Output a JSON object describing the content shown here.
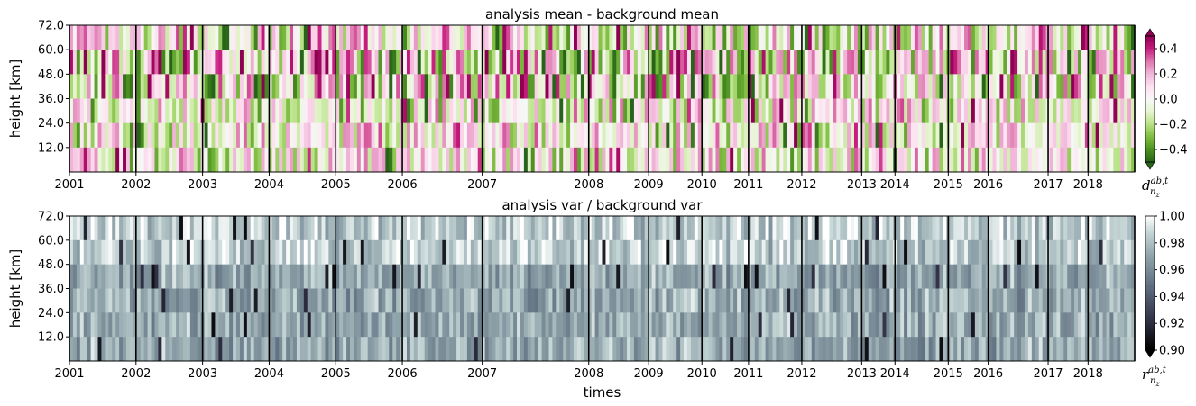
{
  "chart_data": [
    {
      "type": "heatmap",
      "title": "analysis mean - background mean",
      "ylabel": "height [km]",
      "xlabel": "",
      "yticks": [
        "72.0",
        "60.0",
        "48.0",
        "36.0",
        "24.0",
        "12.0"
      ],
      "ylim": [
        0,
        72
      ],
      "x_ticks": [
        "2001",
        "2002",
        "2003",
        "2004",
        "2005",
        "2006",
        "2007",
        "2008",
        "2009",
        "2010",
        "2011",
        "2012",
        "2013",
        "2014",
        "2015",
        "2016",
        "2017",
        "2018"
      ],
      "x_tick_positions": [
        2001.0,
        2002.0,
        2003.0,
        2004.0,
        2005.0,
        2006.0,
        2007.2,
        2008.8,
        2009.7,
        2010.5,
        2011.2,
        2012.0,
        2012.9,
        2013.4,
        2014.2,
        2014.8,
        2015.7,
        2016.3
      ],
      "year_boundaries": [
        2001.0,
        2002.0,
        2003.0,
        2004.0,
        2005.0,
        2006.0,
        2007.2,
        2008.8,
        2009.7,
        2010.5,
        2011.2,
        2012.0,
        2012.9,
        2013.4,
        2014.2,
        2014.8,
        2015.7,
        2016.3,
        2017.0
      ],
      "x_range": [
        2001.0,
        2017.0
      ],
      "height_levels": 6,
      "colormap": "PiYG_r",
      "colors": {
        "low": "#276419",
        "mid": "#f7f7f7",
        "high": "#8e0152"
      },
      "colorbar": {
        "ticks": [
          "0.4",
          "0.2",
          "0.0",
          "−0.2",
          "−0.4"
        ],
        "range": [
          -0.5,
          0.5
        ],
        "extend": "both"
      },
      "colorbar_symbol": {
        "base": "d",
        "sup": "ab,t",
        "sub": "n",
        "subsub": "z"
      }
    },
    {
      "type": "heatmap",
      "title": "analysis var / background var",
      "ylabel": "height [km]",
      "xlabel": "times",
      "yticks": [
        "72.0",
        "60.0",
        "48.0",
        "36.0",
        "24.0",
        "12.0"
      ],
      "ylim": [
        0,
        72
      ],
      "x_ticks": [
        "2001",
        "2002",
        "2003",
        "2004",
        "2005",
        "2006",
        "2007",
        "2008",
        "2009",
        "2010",
        "2011",
        "2012",
        "2013",
        "2014",
        "2015",
        "2016",
        "2017",
        "2018"
      ],
      "x_tick_positions": [
        2001.0,
        2002.0,
        2003.0,
        2004.0,
        2005.0,
        2006.0,
        2007.2,
        2008.8,
        2009.7,
        2010.5,
        2011.2,
        2012.0,
        2012.9,
        2013.4,
        2014.2,
        2014.8,
        2015.7,
        2016.3
      ],
      "year_boundaries": [
        2001.0,
        2002.0,
        2003.0,
        2004.0,
        2005.0,
        2006.0,
        2007.2,
        2008.8,
        2009.7,
        2010.5,
        2011.2,
        2012.0,
        2012.9,
        2013.4,
        2014.2,
        2014.8,
        2015.7,
        2016.3,
        2017.0
      ],
      "x_range": [
        2001.0,
        2017.0
      ],
      "height_levels": 6,
      "colormap": "bone",
      "colors": {
        "low": "#000000",
        "mid": "#7f8f99",
        "high": "#ffffff"
      },
      "colorbar": {
        "ticks": [
          "1.00",
          "0.98",
          "0.96",
          "0.94",
          "0.92",
          "0.90"
        ],
        "range": [
          0.9,
          1.0
        ],
        "extend": "min"
      },
      "colorbar_symbol": {
        "base": "r",
        "sup": "ab,t",
        "sub": "n",
        "subsub": "z"
      }
    }
  ]
}
